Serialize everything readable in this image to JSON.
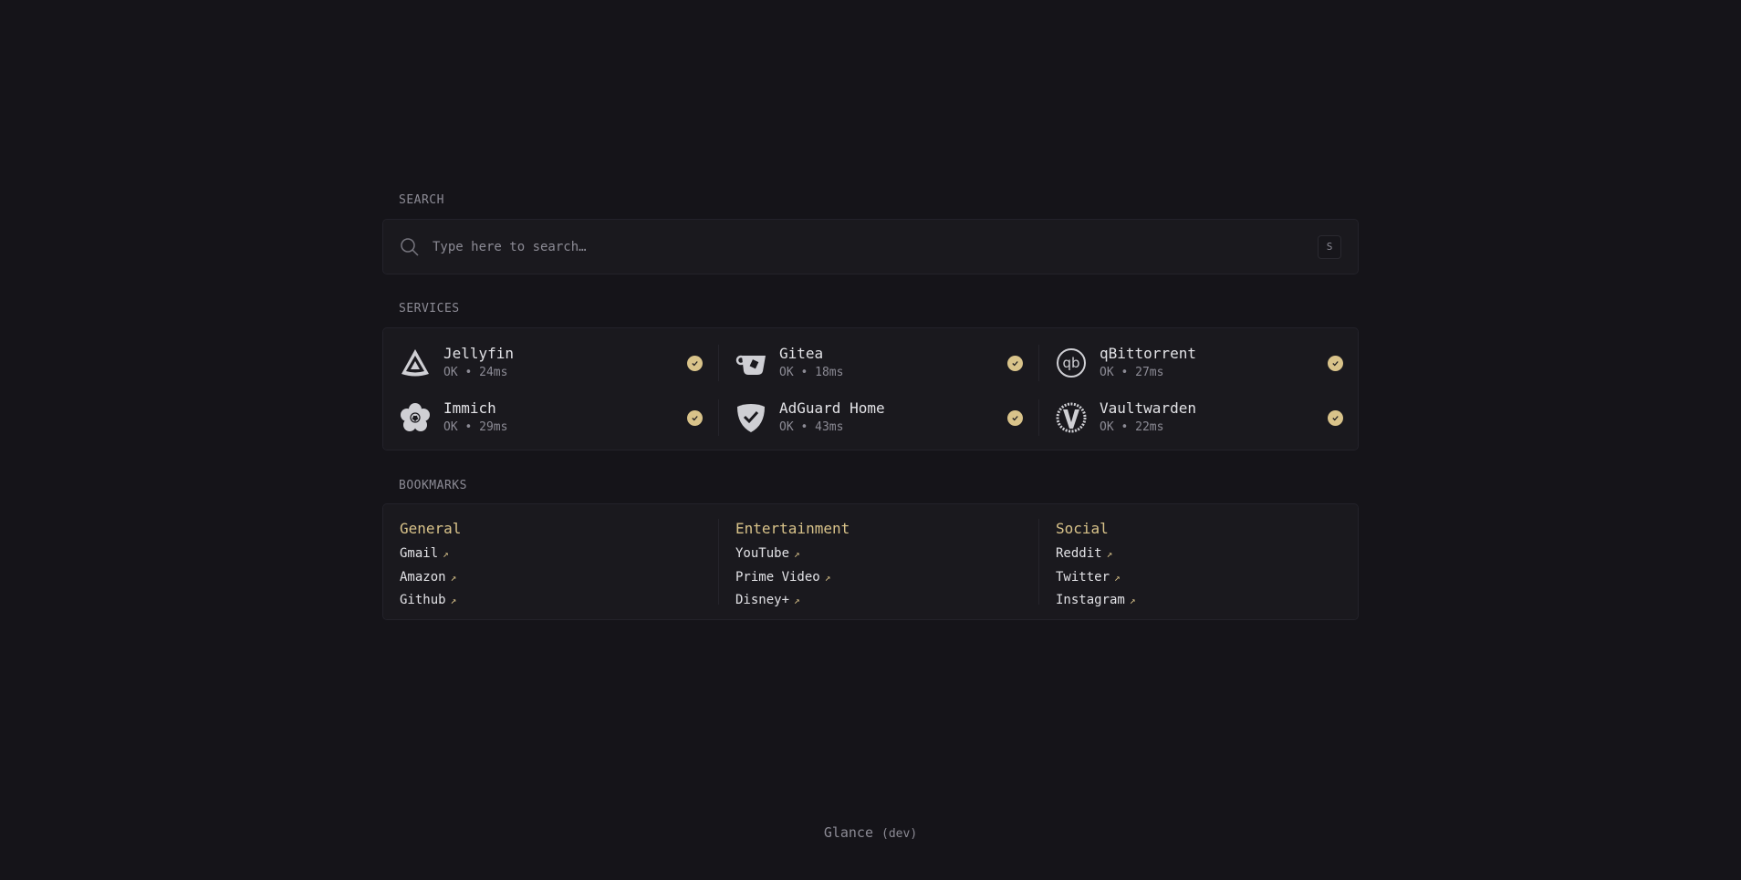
{
  "colors": {
    "background": "#151419",
    "panel": "#1a191e",
    "accent": "#d9c38a",
    "text": "#e2e2e6",
    "muted": "#8c8b95"
  },
  "search": {
    "label": "SEARCH",
    "placeholder": "Type here to search…",
    "shortcut": "S",
    "icon": "search-icon"
  },
  "services": {
    "label": "SERVICES",
    "items": [
      {
        "name": "Jellyfin",
        "status": "OK",
        "latency": "24ms",
        "icon": "jellyfin-icon"
      },
      {
        "name": "Gitea",
        "status": "OK",
        "latency": "18ms",
        "icon": "gitea-icon"
      },
      {
        "name": "qBittorrent",
        "status": "OK",
        "latency": "27ms",
        "icon": "qbittorrent-icon"
      },
      {
        "name": "Immich",
        "status": "OK",
        "latency": "29ms",
        "icon": "immich-icon"
      },
      {
        "name": "AdGuard Home",
        "status": "OK",
        "latency": "43ms",
        "icon": "adguard-icon"
      },
      {
        "name": "Vaultwarden",
        "status": "OK",
        "latency": "22ms",
        "icon": "vaultwarden-icon"
      }
    ]
  },
  "bookmarks": {
    "label": "BOOKMARKS",
    "groups": [
      {
        "title": "General",
        "links": [
          "Gmail",
          "Amazon",
          "Github"
        ]
      },
      {
        "title": "Entertainment",
        "links": [
          "YouTube",
          "Prime Video",
          "Disney+"
        ]
      },
      {
        "title": "Social",
        "links": [
          "Reddit",
          "Twitter",
          "Instagram"
        ]
      }
    ],
    "arrow": "↗"
  },
  "footer": {
    "app": "Glance",
    "version": "(dev)"
  }
}
